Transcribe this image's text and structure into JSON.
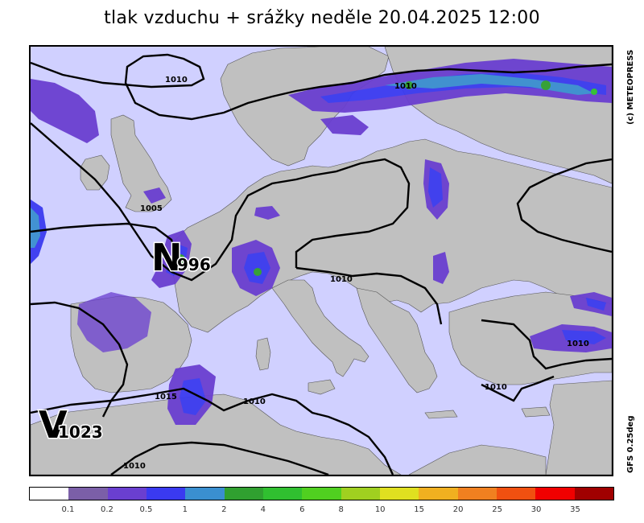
{
  "title": "tlak vzduchu + srážky  neděle 20.04.2025 12:00",
  "credit": "(c) METEOPRESS",
  "model": "GFS 0.25deg",
  "colors": {
    "sea": "#d0d0ff",
    "land": "#c0c0c0",
    "isobar": "#000000"
  },
  "pressure_centers": [
    {
      "letter": "N",
      "value": "996"
    },
    {
      "letter": "V",
      "value": "1023"
    }
  ],
  "isobar_labels": [
    "1010",
    "1010",
    "1005",
    "1010",
    "1010",
    "1010",
    "1010",
    "1015",
    "1010",
    "1010"
  ],
  "legend": {
    "ticks": [
      "0.1",
      "0.2",
      "0.5",
      "1",
      "2",
      "4",
      "6",
      "8",
      "10",
      "15",
      "20",
      "25",
      "30",
      "35"
    ],
    "colors": [
      "#ffffff",
      "#7b5fa8",
      "#6a3fd0",
      "#3a3af0",
      "#3a8fd0",
      "#30a030",
      "#30c030",
      "#50d020",
      "#a0d020",
      "#e0e020",
      "#f0b020",
      "#f08020",
      "#f05010",
      "#f00000",
      "#a00000"
    ]
  }
}
